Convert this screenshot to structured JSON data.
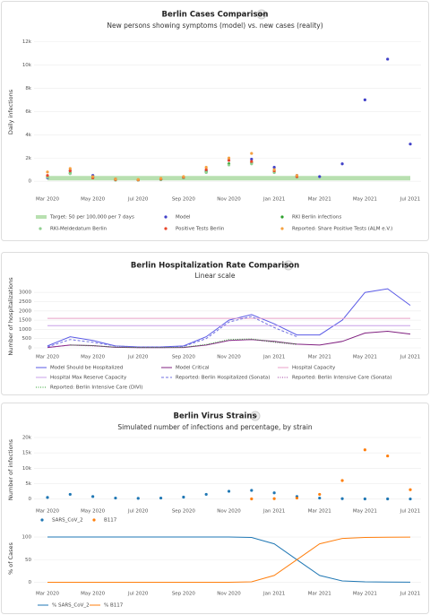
{
  "chart_data": [
    {
      "type": "line",
      "title": "Berlin Cases Comparison",
      "subtitle": "New persons showing symptoms (model) vs. new cases (reality)",
      "y_label": "Daily infections",
      "x": [
        "Mar 2020",
        null,
        "May 2020",
        null,
        "Jul 2020",
        null,
        "Sep 2020",
        null,
        "Nov 2020",
        null,
        "Jan 2021",
        null,
        "Mar 2021",
        null,
        "May 2021",
        null,
        "Jul 2021"
      ],
      "ylim": [
        -600,
        12500
      ],
      "yticks": [
        0,
        {
          "value": 2000,
          "label": "2k"
        },
        {
          "value": 4000,
          "label": "4k"
        },
        {
          "value": 6000,
          "label": "6k"
        },
        {
          "value": 8000,
          "label": "8k"
        },
        {
          "value": 10000,
          "label": "10k"
        },
        {
          "value": 12000,
          "label": "12k"
        }
      ],
      "grid": true,
      "series": [
        {
          "name": "Target: 50 per 100,000 per 7 days",
          "color": "#b8e0b0",
          "style": "band",
          "values": [
            260,
            260,
            260,
            260,
            260,
            260,
            260,
            260,
            260,
            260,
            260,
            260,
            260,
            260,
            260,
            260,
            260
          ]
        },
        {
          "name": "Model",
          "color": "#4040c8",
          "style": "dots",
          "values": [
            300,
            900,
            500,
            200,
            100,
            150,
            300,
            900,
            1800,
            1900,
            1200,
            500,
            400,
            1500,
            7000,
            10500,
            3200
          ]
        },
        {
          "name": "RKI Berlin infections",
          "color": "#2ca02c",
          "style": "dots",
          "values": [
            400,
            700,
            300,
            100,
            100,
            150,
            300,
            800,
            1500,
            1600,
            800,
            400,
            null,
            null,
            null,
            null,
            null
          ]
        },
        {
          "name": "RKI-Meldedatum Berlin",
          "color": "#90d090",
          "style": "dots",
          "values": [
            350,
            650,
            300,
            100,
            100,
            150,
            300,
            750,
            1400,
            1500,
            750,
            350,
            null,
            null,
            null,
            null,
            null
          ]
        },
        {
          "name": "Positive Tests Berlin",
          "color": "#e8462a",
          "style": "dots",
          "values": [
            500,
            900,
            300,
            150,
            120,
            200,
            350,
            1000,
            1800,
            1700,
            900,
            400,
            null,
            null,
            null,
            null,
            null
          ]
        },
        {
          "name": "Reported: Share Positive Tests (ALM e.V.)",
          "color": "#f5a040",
          "style": "dots",
          "values": [
            800,
            1100,
            400,
            200,
            150,
            250,
            400,
            1200,
            2000,
            2400,
            1000,
            500,
            null,
            null,
            null,
            null,
            null
          ]
        }
      ]
    },
    {
      "type": "line",
      "title": "Berlin Hospitalization Rate Comparison",
      "subtitle": "Linear scale",
      "y_label": "Number of hospitalizations",
      "x": [
        "Mar 2020",
        null,
        "May 2020",
        null,
        "Jul 2020",
        null,
        "Sep 2020",
        null,
        "Nov 2020",
        null,
        "Jan 2021",
        null,
        "Mar 2021",
        null,
        "May 2021",
        null,
        "Jul 2021"
      ],
      "ylim": [
        0,
        3400
      ],
      "yticks": [
        0,
        500,
        1000,
        1500,
        2000,
        2500,
        3000
      ],
      "grid": true,
      "series": [
        {
          "name": "Model Should be Hospitalized",
          "color": "#5a5ae6",
          "style": "solid",
          "values": [
            100,
            600,
            400,
            100,
            50,
            50,
            100,
            600,
            1500,
            1800,
            1300,
            700,
            700,
            1500,
            3000,
            3200,
            2300
          ]
        },
        {
          "name": "Model Critical",
          "color": "#802080",
          "style": "solid",
          "values": [
            20,
            150,
            120,
            30,
            10,
            10,
            20,
            150,
            400,
            450,
            350,
            200,
            150,
            350,
            800,
            900,
            750
          ]
        },
        {
          "name": "Hospital Capacity",
          "color": "#e8a0c8",
          "style": "solid",
          "values": [
            1600,
            1600,
            1600,
            1600,
            1600,
            1600,
            1600,
            1600,
            1600,
            1600,
            1600,
            1600,
            1600,
            1600,
            1600,
            1600,
            1600
          ]
        },
        {
          "name": "Hospital Max Reserve Capacity",
          "color": "#c8a0e8",
          "style": "solid",
          "values": [
            1200,
            1200,
            1200,
            1200,
            1200,
            1200,
            1200,
            1200,
            1200,
            1200,
            1200,
            1200,
            1200,
            1200,
            1200,
            1200,
            1200
          ]
        },
        {
          "name": "Reported: Berlin Hospitalized (Sonata)",
          "color": "#7070e0",
          "style": "dashed",
          "values": [
            50,
            450,
            300,
            100,
            50,
            50,
            80,
            500,
            1400,
            1700,
            1100,
            600,
            null,
            null,
            null,
            null,
            null
          ]
        },
        {
          "name": "Reported: Berlin Intensive Care (Sonata)",
          "color": "#a040a0",
          "style": "dotted",
          "values": [
            20,
            150,
            100,
            40,
            20,
            20,
            30,
            150,
            400,
            450,
            300,
            180,
            null,
            null,
            null,
            null,
            null
          ]
        },
        {
          "name": "Reported: Berlin Intensive Care (DIVI)",
          "color": "#30a030",
          "style": "dotted",
          "values": [
            null,
            150,
            120,
            40,
            20,
            20,
            30,
            180,
            450,
            480,
            320,
            200,
            null,
            null,
            null,
            null,
            null
          ]
        }
      ]
    },
    {
      "type": "line",
      "title": "Berlin Virus Strains",
      "subtitle": "Simulated number of infections and percentage, by strain",
      "y_label": "Number of infections",
      "x": [
        "Mar 2020",
        null,
        "May 2020",
        null,
        "Jul 2020",
        null,
        "Sep 2020",
        null,
        "Nov 2020",
        null,
        "Jan 2021",
        null,
        "Mar 2021",
        null,
        "May 2021",
        null,
        "Jul 2021"
      ],
      "ylim": [
        -1000,
        20000
      ],
      "yticks": [
        0,
        {
          "value": 5000,
          "label": "5k"
        },
        {
          "value": 10000,
          "label": "10k"
        },
        {
          "value": 15000,
          "label": "15k"
        },
        {
          "value": 20000,
          "label": "20k"
        }
      ],
      "grid": true,
      "series": [
        {
          "name": "SARS_CoV_2",
          "color": "#1f77b4",
          "style": "dots",
          "values": [
            500,
            1500,
            800,
            300,
            200,
            300,
            600,
            1500,
            2500,
            2800,
            2000,
            800,
            300,
            100,
            30,
            10,
            5
          ]
        },
        {
          "name": "B117",
          "color": "#ff7f0e",
          "style": "dots",
          "values": [
            null,
            null,
            null,
            null,
            null,
            null,
            null,
            null,
            null,
            10,
            100,
            300,
            1500,
            6000,
            16000,
            14000,
            3000
          ]
        }
      ]
    },
    {
      "type": "line",
      "y_label": "% of Cases",
      "x": [
        "Mar 2020",
        null,
        "May 2020",
        null,
        "Jul 2020",
        null,
        "Sep 2020",
        null,
        "Nov 2020",
        null,
        "Jan 2021",
        null,
        "Mar 2021",
        null,
        "May 2021",
        null,
        "Jul 2021"
      ],
      "ylim": [
        -5,
        110
      ],
      "yticks": [
        0,
        50,
        100
      ],
      "grid": true,
      "series": [
        {
          "name": "% SARS_CoV_2",
          "color": "#1f77b4",
          "style": "solid",
          "values": [
            100,
            100,
            100,
            100,
            100,
            100,
            100,
            100,
            100,
            99,
            85,
            50,
            15,
            3,
            1,
            0.5,
            0.2
          ]
        },
        {
          "name": "% B117",
          "color": "#ff7f0e",
          "style": "solid",
          "values": [
            0,
            0,
            0,
            0,
            0,
            0,
            0,
            0,
            0,
            1,
            15,
            50,
            85,
            97,
            99,
            99.5,
            99.8
          ]
        }
      ]
    }
  ]
}
